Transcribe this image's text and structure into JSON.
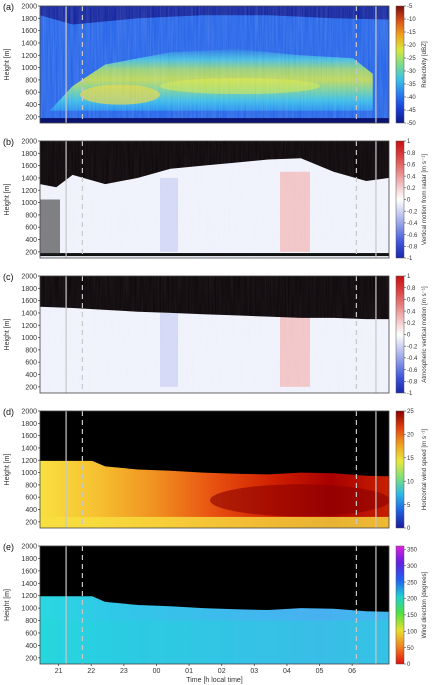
{
  "chart_data": [
    {
      "type": "heatmap",
      "panel_label": "(a)",
      "ylabel": "Height [m]",
      "ylim": [
        100,
        2000
      ],
      "yticks": [
        200,
        400,
        600,
        800,
        1000,
        1200,
        1400,
        1600,
        1800,
        2000
      ],
      "colorbar": {
        "label": "Reflectivity [dBZ]",
        "range": [
          -50,
          -5
        ],
        "ticks": [
          -5,
          -10,
          -15,
          -20,
          -25,
          -30,
          -35,
          -40,
          -45,
          -50
        ],
        "colors": [
          "#0b1a8c",
          "#1a3fd8",
          "#2a7ff0",
          "#3ec2e6",
          "#7ddc8a",
          "#d8e83a",
          "#f2a21c",
          "#d8501a",
          "#7a0c0c"
        ]
      },
      "vertical_lines": {
        "solid_hours": [
          20.8,
          6.3
        ],
        "dashed_hours": [
          21.3,
          5.7
        ]
      }
    },
    {
      "type": "heatmap",
      "panel_label": "(b)",
      "ylabel": "Height [m]",
      "ylim": [
        100,
        2000
      ],
      "yticks": [
        200,
        400,
        600,
        800,
        1000,
        1200,
        1400,
        1600,
        1800,
        2000
      ],
      "colorbar": {
        "label": "Vertical motion from radar [m s⁻¹]",
        "range": [
          -1,
          1
        ],
        "ticks": [
          1,
          0.8,
          0.6,
          0.4,
          0.2,
          0,
          -0.2,
          -0.4,
          -0.6,
          -0.8,
          -1
        ],
        "colors": [
          "#1b28a8",
          "#3a52d8",
          "#7f8fe6",
          "#c3c8f0",
          "#ffffff",
          "#f3c2c2",
          "#e78080",
          "#d94040",
          "#c81010"
        ]
      },
      "vertical_lines": {
        "solid_hours": [
          20.8,
          6.3
        ],
        "dashed_hours": [
          21.3,
          5.7
        ]
      }
    },
    {
      "type": "heatmap",
      "panel_label": "(c)",
      "ylabel": "Height [m]",
      "ylim": [
        100,
        2000
      ],
      "yticks": [
        200,
        400,
        600,
        800,
        1000,
        1200,
        1400,
        1600,
        1800,
        2000
      ],
      "colorbar": {
        "label": "Atmospheric vertical motion [m s⁻¹]",
        "range": [
          -1,
          1
        ],
        "ticks": [
          1,
          0.8,
          0.6,
          0.4,
          0.2,
          0,
          -0.2,
          -0.4,
          -0.6,
          -0.8,
          -1
        ],
        "colors": [
          "#1b28a8",
          "#3a52d8",
          "#7f8fe6",
          "#c3c8f0",
          "#ffffff",
          "#f3c2c2",
          "#e78080",
          "#d94040",
          "#c81010"
        ]
      },
      "vertical_lines": {
        "solid_hours": [
          20.8,
          6.3
        ],
        "dashed_hours": [
          21.3,
          5.7
        ]
      }
    },
    {
      "type": "heatmap",
      "panel_label": "(d)",
      "ylabel": "Height [m]",
      "ylim": [
        100,
        2000
      ],
      "yticks": [
        200,
        400,
        600,
        800,
        1000,
        1200,
        1400,
        1600,
        1800,
        2000
      ],
      "colorbar": {
        "label": "Horizontal wind speed [m s⁻¹]",
        "range": [
          0,
          25
        ],
        "ticks": [
          25,
          20,
          15,
          10,
          5,
          0
        ],
        "colors": [
          "#1a1a9a",
          "#1f5fe0",
          "#2bb8e8",
          "#7de07a",
          "#e8e83a",
          "#f0a020",
          "#e04010",
          "#8a0000"
        ]
      },
      "vertical_lines": {
        "solid_hours": [
          20.8,
          6.3
        ],
        "dashed_hours": [
          21.3,
          5.7
        ]
      }
    },
    {
      "type": "heatmap",
      "panel_label": "(e)",
      "ylabel": "Height [m]",
      "xlabel": "Time [h local time]",
      "ylim": [
        100,
        2000
      ],
      "yticks": [
        200,
        400,
        600,
        800,
        1000,
        1200,
        1400,
        1600,
        1800,
        2000
      ],
      "xticks": [
        "21",
        "22",
        "23",
        "00",
        "01",
        "02",
        "03",
        "04",
        "05",
        "06"
      ],
      "colorbar": {
        "label": "Wind direction [degrees]",
        "range": [
          0,
          360
        ],
        "ticks": [
          350,
          300,
          250,
          200,
          150,
          100,
          50,
          0
        ],
        "colors": [
          "#e01010",
          "#f08020",
          "#e8e030",
          "#50e040",
          "#20d0d0",
          "#2060f0",
          "#6020e0",
          "#e020e0"
        ]
      },
      "vertical_lines": {
        "solid_hours": [
          20.8,
          6.3
        ],
        "dashed_hours": [
          21.3,
          5.7
        ]
      }
    }
  ]
}
